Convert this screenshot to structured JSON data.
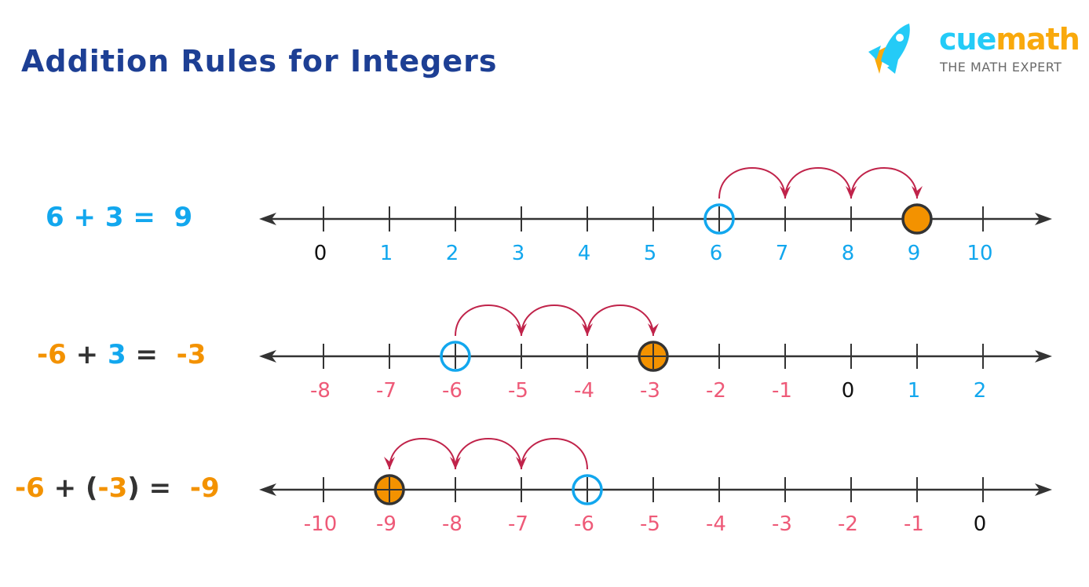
{
  "title": "Addition Rules for Integers",
  "logo": {
    "brand_part1": "cue",
    "brand_part2": "math",
    "tagline": "THE MATH EXPERT"
  },
  "colors": {
    "title": "#1d3f94",
    "blue": "#12a7ee",
    "orange": "#f39200",
    "pink": "#ee5a78",
    "arc": "#c0234a",
    "axis": "#333333",
    "zero": "#111111"
  },
  "rows": [
    {
      "equation": [
        {
          "t": "6",
          "c": "blue"
        },
        {
          "t": " + ",
          "c": "blue"
        },
        {
          "t": "3",
          "c": "blue"
        },
        {
          "t": " = ",
          "c": "blue"
        },
        {
          "t": " 9",
          "c": "blue"
        }
      ],
      "ticks": [
        "0",
        "1",
        "2",
        "3",
        "4",
        "5",
        "6",
        "7",
        "8",
        "9",
        "10"
      ],
      "start": "6",
      "end": "9"
    },
    {
      "equation": [
        {
          "t": "-6",
          "c": "orange"
        },
        {
          "t": " + ",
          "c": "axis"
        },
        {
          "t": "3",
          "c": "blue"
        },
        {
          "t": " = ",
          "c": "axis"
        },
        {
          "t": " -3",
          "c": "orange"
        }
      ],
      "ticks": [
        "-8",
        "-7",
        "-6",
        "-5",
        "-4",
        "-3",
        "-2",
        "-1",
        "0",
        "1",
        "2"
      ],
      "start": "-6",
      "end": "-3"
    },
    {
      "equation": [
        {
          "t": "-6",
          "c": "orange"
        },
        {
          "t": " + ",
          "c": "axis"
        },
        {
          "t": "(",
          "c": "axis"
        },
        {
          "t": "-3",
          "c": "orange"
        },
        {
          "t": ")",
          "c": "axis"
        },
        {
          "t": " = ",
          "c": "axis"
        },
        {
          "t": " -9",
          "c": "orange"
        }
      ],
      "ticks": [
        "-10",
        "-9",
        "-8",
        "-7",
        "-6",
        "-5",
        "-4",
        "-3",
        "-2",
        "-1",
        "0"
      ],
      "start": "-6",
      "end": "-9"
    }
  ]
}
